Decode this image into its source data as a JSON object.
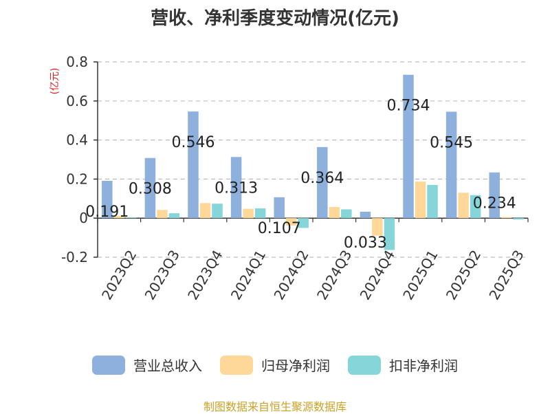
{
  "chart_data": {
    "type": "bar",
    "title": "营收、净利季度变动情况(亿元)",
    "ylabel": "(亿元)",
    "xlabel": "",
    "ylim": [
      -0.2,
      0.8
    ],
    "yticks": [
      "0.8",
      "0.6",
      "0.4",
      "0.2",
      "0",
      "-0.2"
    ],
    "ytick_values": [
      0.8,
      0.6,
      0.4,
      0.2,
      0,
      -0.2
    ],
    "grid": true,
    "legend_position": "bottom",
    "categories": [
      "2023Q2",
      "2023Q3",
      "2023Q4",
      "2024Q1",
      "2024Q2",
      "2024Q3",
      "2024Q4",
      "2025Q1",
      "2025Q2",
      "2025Q3"
    ],
    "series": [
      {
        "name": "营业总收入",
        "color": "#8eb0dc",
        "values": [
          0.191,
          0.308,
          0.546,
          0.313,
          0.107,
          0.364,
          0.033,
          0.734,
          0.545,
          0.234
        ],
        "labels": [
          "0.191",
          "0.308",
          "0.546",
          "0.313",
          "0.107",
          "0.364",
          "0.033",
          "0.734",
          "0.545",
          "0.234"
        ]
      },
      {
        "name": "归母净利润",
        "color": "#fdd898",
        "values": [
          0.01,
          0.042,
          0.077,
          0.048,
          -0.038,
          0.057,
          -0.09,
          0.187,
          0.13,
          0.005
        ]
      },
      {
        "name": "扣非净利润",
        "color": "#86d5d8",
        "values": [
          0.004,
          0.025,
          0.074,
          0.05,
          -0.05,
          0.045,
          -0.163,
          0.17,
          0.118,
          -0.007
        ]
      }
    ]
  },
  "footer": "制图数据来自恒生聚源数据库"
}
